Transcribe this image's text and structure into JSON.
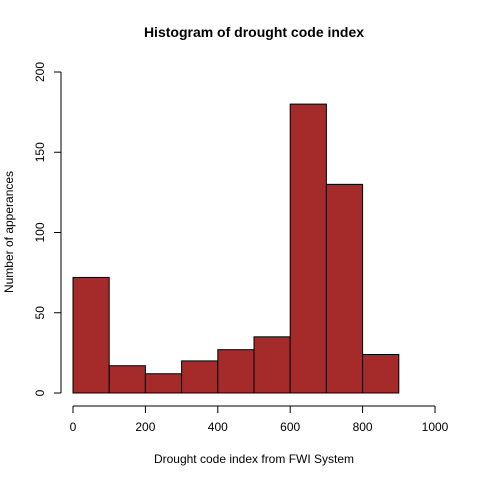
{
  "chart_data": {
    "type": "bar",
    "title": "Histogram of drought code index",
    "xlabel": "Drought code index from FWI System",
    "ylabel": "Number of apperances",
    "bins": [
      {
        "start": 0,
        "end": 100,
        "count": 72
      },
      {
        "start": 100,
        "end": 200,
        "count": 17
      },
      {
        "start": 200,
        "end": 300,
        "count": 12
      },
      {
        "start": 300,
        "end": 400,
        "count": 20
      },
      {
        "start": 400,
        "end": 500,
        "count": 27
      },
      {
        "start": 500,
        "end": 600,
        "count": 35
      },
      {
        "start": 600,
        "end": 700,
        "count": 180
      },
      {
        "start": 700,
        "end": 800,
        "count": 130
      },
      {
        "start": 800,
        "end": 900,
        "count": 24
      }
    ],
    "xlim": [
      0,
      1000
    ],
    "ylim": [
      0,
      200
    ],
    "xticks": [
      "0",
      "200",
      "400",
      "600",
      "800",
      "1000"
    ],
    "yticks": [
      "0",
      "50",
      "100",
      "150",
      "200"
    ],
    "bar_color": "#A52A2A",
    "grid": false
  }
}
